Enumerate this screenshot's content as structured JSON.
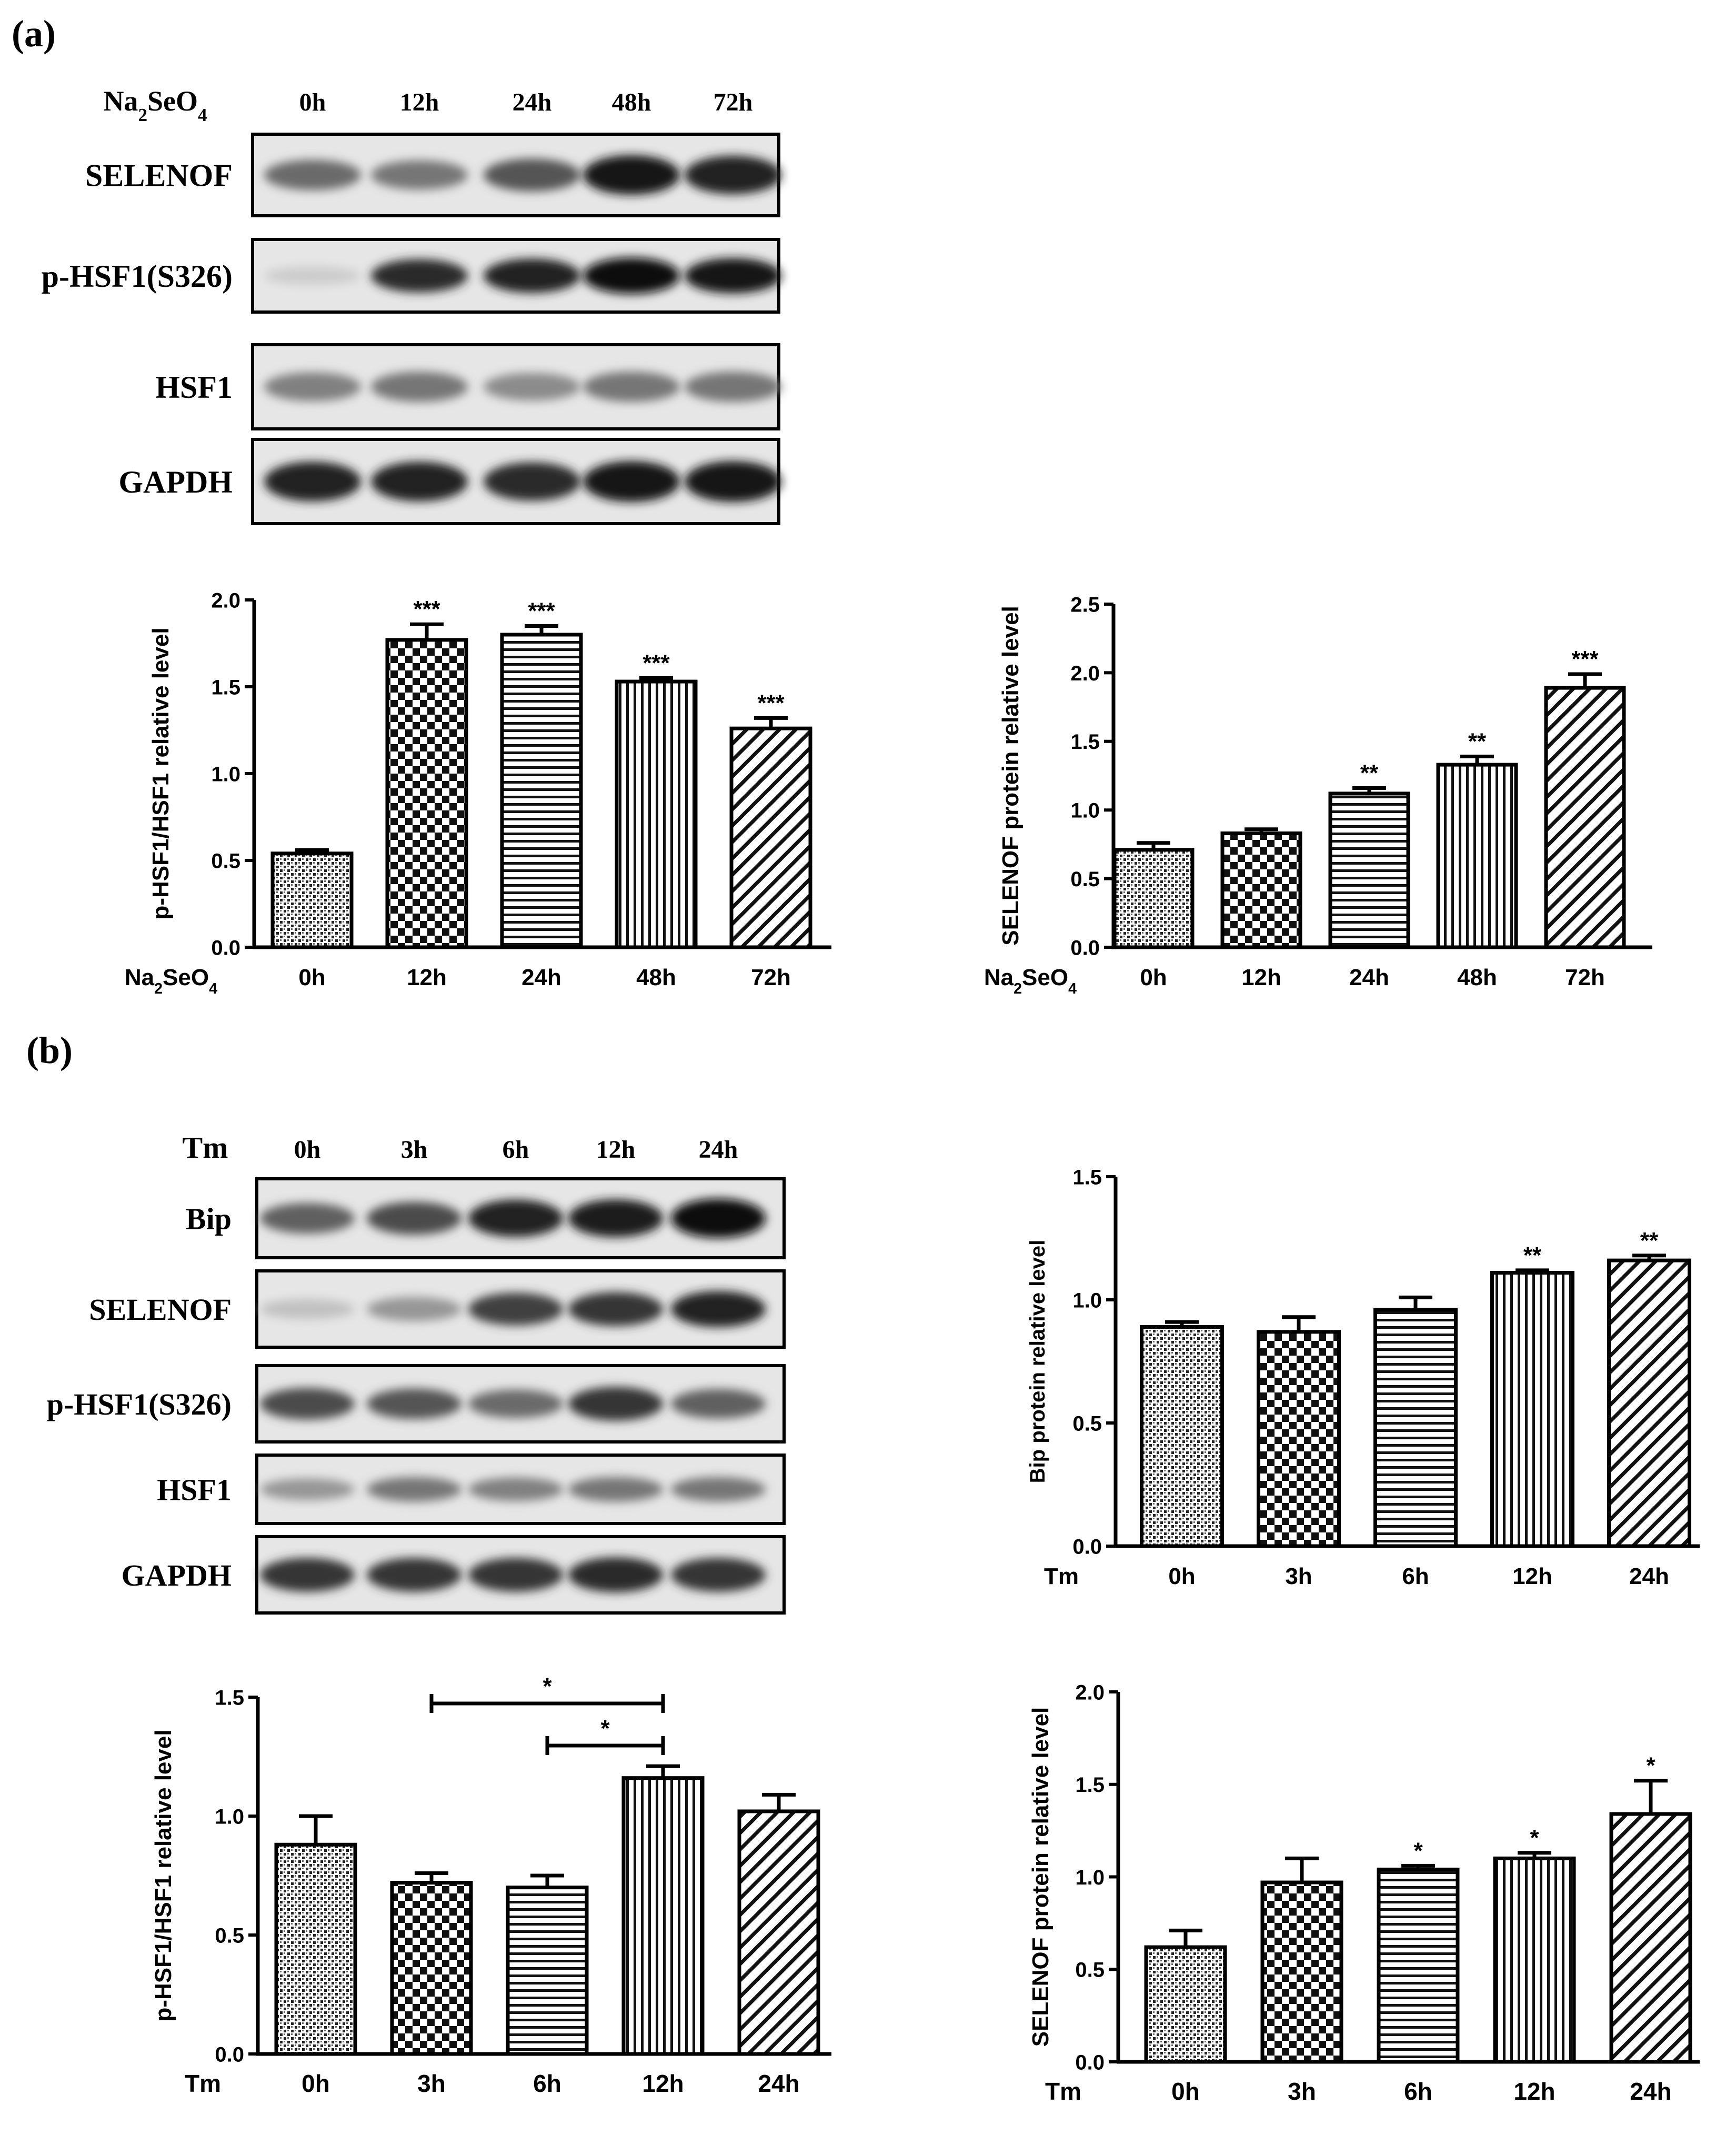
{
  "panels": [
    {
      "label": "(a)"
    },
    {
      "label": "(b)"
    }
  ],
  "blots": [
    {
      "treatment": "Na2SeO4",
      "lanes": [
        "0h",
        "12h",
        "24h",
        "48h",
        "72h"
      ],
      "rows": [
        {
          "protein": "SELENOF",
          "intensity": [
            0.55,
            0.5,
            0.65,
            0.95,
            0.9
          ]
        },
        {
          "protein": "p-HSF1(S326)",
          "intensity": [
            0.1,
            0.85,
            0.9,
            1.0,
            0.95
          ]
        },
        {
          "protein": "HSF1",
          "intensity": [
            0.45,
            0.5,
            0.4,
            0.5,
            0.5
          ]
        },
        {
          "protein": "GAPDH",
          "intensity": [
            0.9,
            0.9,
            0.85,
            0.95,
            0.95
          ]
        }
      ]
    },
    {
      "treatment": "Tm",
      "lanes": [
        "0h",
        "3h",
        "6h",
        "12h",
        "24h"
      ],
      "rows": [
        {
          "protein": "Bip",
          "intensity": [
            0.6,
            0.7,
            0.9,
            0.92,
            1.0
          ]
        },
        {
          "protein": "SELENOF",
          "intensity": [
            0.15,
            0.35,
            0.75,
            0.8,
            0.9
          ]
        },
        {
          "protein": "p-HSF1(S326)",
          "intensity": [
            0.7,
            0.65,
            0.55,
            0.8,
            0.6
          ]
        },
        {
          "protein": "HSF1",
          "intensity": [
            0.35,
            0.5,
            0.45,
            0.5,
            0.5
          ]
        },
        {
          "protein": "GAPDH",
          "intensity": [
            0.8,
            0.8,
            0.8,
            0.85,
            0.8
          ]
        }
      ]
    }
  ],
  "chart_data": [
    {
      "type": "bar",
      "ylabel": "p-HSF1/HSF1 relative level",
      "xaxis_label": "Na2SeO4",
      "categories": [
        "0h",
        "12h",
        "24h",
        "48h",
        "72h"
      ],
      "values": [
        0.54,
        1.77,
        1.8,
        1.53,
        1.26
      ],
      "errors": [
        0.02,
        0.09,
        0.05,
        0.02,
        0.06
      ],
      "significance": [
        "",
        "***",
        "***",
        "***",
        "***"
      ],
      "ylim": [
        0,
        2.0
      ],
      "yticks": [
        "0.0",
        "0.5",
        "1.0",
        "1.5",
        "2.0"
      ]
    },
    {
      "type": "bar",
      "ylabel": "SELENOF protein relative level",
      "xaxis_label": "Na2SeO4",
      "categories": [
        "0h",
        "12h",
        "24h",
        "48h",
        "72h"
      ],
      "values": [
        0.71,
        0.83,
        1.12,
        1.33,
        1.89
      ],
      "errors": [
        0.05,
        0.03,
        0.04,
        0.06,
        0.1
      ],
      "significance": [
        "",
        "",
        "**",
        "**",
        "***"
      ],
      "ylim": [
        0,
        2.5
      ],
      "yticks": [
        "0.0",
        "0.5",
        "1.0",
        "1.5",
        "2.0",
        "2.5"
      ]
    },
    {
      "type": "bar",
      "ylabel": "Bip protein relative level",
      "xaxis_label": "Tm",
      "categories": [
        "0h",
        "3h",
        "6h",
        "12h",
        "24h"
      ],
      "values": [
        0.89,
        0.87,
        0.96,
        1.11,
        1.16
      ],
      "errors": [
        0.02,
        0.06,
        0.05,
        0.01,
        0.02
      ],
      "significance": [
        "",
        "",
        "",
        "**",
        "**"
      ],
      "ylim": [
        0,
        1.5
      ],
      "yticks": [
        "0.0",
        "0.5",
        "1.0",
        "1.5"
      ]
    },
    {
      "type": "bar",
      "ylabel": "p-HSF1/HSF1 relative level",
      "xaxis_label": "Tm",
      "categories": [
        "0h",
        "3h",
        "6h",
        "12h",
        "24h"
      ],
      "values": [
        0.88,
        0.72,
        0.7,
        1.16,
        1.02
      ],
      "errors": [
        0.12,
        0.04,
        0.05,
        0.05,
        0.07
      ],
      "significance": [
        "",
        "",
        "",
        "",
        ""
      ],
      "comparisons": [
        {
          "from": 1,
          "to": 3,
          "label": "*"
        },
        {
          "from": 2,
          "to": 3,
          "label": "*"
        }
      ],
      "ylim": [
        0,
        1.5
      ],
      "yticks": [
        "0.0",
        "0.5",
        "1.0",
        "1.5"
      ]
    },
    {
      "type": "bar",
      "ylabel": "SELENOF protein relative level",
      "xaxis_label": "Tm",
      "categories": [
        "0h",
        "3h",
        "6h",
        "12h",
        "24h"
      ],
      "values": [
        0.62,
        0.97,
        1.04,
        1.1,
        1.34
      ],
      "errors": [
        0.09,
        0.13,
        0.02,
        0.03,
        0.18
      ],
      "significance": [
        "",
        "",
        "*",
        "*",
        "*"
      ],
      "ylim": [
        0,
        2.0
      ],
      "yticks": [
        "0.0",
        "0.5",
        "1.0",
        "1.5",
        "2.0"
      ]
    }
  ]
}
